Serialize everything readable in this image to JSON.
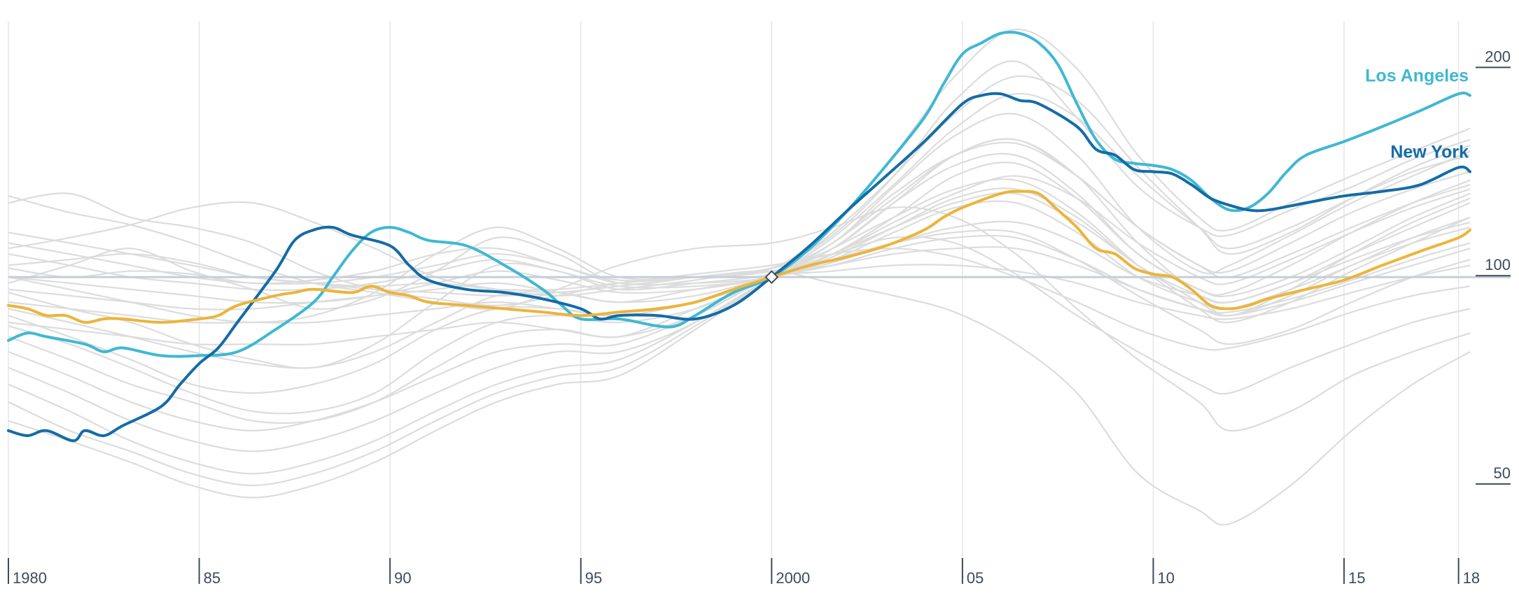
{
  "chart_data": {
    "type": "line",
    "title": "",
    "xlabel": "",
    "ylabel": "",
    "y_scale": "log",
    "xlim": [
      1980,
      2018.3
    ],
    "ylim": [
      40,
      240
    ],
    "grid": true,
    "reference_value": 100,
    "reference_point": {
      "x": 2000,
      "y": 100
    },
    "x_ticks": [
      {
        "value": 1980,
        "label": "1980"
      },
      {
        "value": 1985,
        "label": "85"
      },
      {
        "value": 1990,
        "label": "90"
      },
      {
        "value": 1995,
        "label": "95"
      },
      {
        "value": 2000,
        "label": "2000"
      },
      {
        "value": 2005,
        "label": "05"
      },
      {
        "value": 2010,
        "label": "10"
      },
      {
        "value": 2015,
        "label": "15"
      },
      {
        "value": 2018,
        "label": "18"
      }
    ],
    "y_ticks": [
      {
        "value": 200,
        "label": "200"
      },
      {
        "value": 100,
        "label": "100"
      },
      {
        "value": 50,
        "label": "50"
      }
    ],
    "colors": {
      "background_series": "#dcdcdc",
      "reference_line": "#c5cfd8",
      "gridline": "#e6e6e6",
      "axis_text": "#3d4a5c",
      "Los Angeles": "#3fb8d2",
      "New York": "#136ca6",
      "highlight_gold": "#ecb43a"
    },
    "highlighted_series": [
      {
        "name": "Los Angeles",
        "color": "#3fb8d2",
        "labeled": true,
        "x": [
          1980,
          1980.5,
          1981,
          1982,
          1982.5,
          1983,
          1984,
          1985,
          1986,
          1987,
          1988,
          1988.5,
          1989,
          1989.5,
          1990,
          1990.5,
          1991,
          1992,
          1993,
          1994,
          1994.5,
          1995,
          1996,
          1997,
          1997.5,
          1998,
          1999,
          2000,
          2001,
          2002,
          2003,
          2004,
          2004.5,
          2005,
          2005.5,
          2006,
          2006.5,
          2007,
          2007.5,
          2008,
          2008.5,
          2009,
          2009.5,
          2010,
          2010.5,
          2011,
          2011.5,
          2012,
          2012.5,
          2013,
          2013.5,
          2014,
          2015,
          2016,
          2017,
          2018,
          2018.3
        ],
        "y": [
          81,
          83,
          82,
          80,
          78,
          79,
          77,
          77,
          78,
          84,
          92,
          100,
          109,
          116,
          118,
          116,
          113,
          111,
          104,
          96,
          91,
          87,
          87,
          85,
          85,
          88,
          95,
          100,
          110,
          125,
          145,
          170,
          190,
          210,
          218,
          225,
          225,
          218,
          203,
          178,
          158,
          148,
          146,
          145,
          143,
          138,
          130,
          125,
          126,
          132,
          142,
          150,
          157,
          165,
          174,
          184,
          183
        ]
      },
      {
        "name": "New York",
        "color": "#136ca6",
        "labeled": true,
        "x": [
          1980,
          1980.5,
          1981,
          1981.7,
          1982,
          1982.5,
          1983,
          1984,
          1984.5,
          1985,
          1985.5,
          1986,
          1987,
          1987.5,
          1988,
          1988.5,
          1989,
          1990,
          1990.5,
          1991,
          1992,
          1993,
          1994,
          1995,
          1995.5,
          1996,
          1997,
          1998,
          1999,
          2000,
          2001,
          2002,
          2003,
          2004,
          2005,
          2005.5,
          2006,
          2006.5,
          2007,
          2008,
          2008.5,
          2009,
          2009.5,
          2010,
          2010.5,
          2011,
          2011.5,
          2012,
          2012.5,
          2013,
          2014,
          2015,
          2016,
          2017,
          2018,
          2018.3
        ],
        "y": [
          60,
          59,
          60,
          58,
          60,
          59,
          61,
          65,
          70,
          75,
          79,
          86,
          102,
          113,
          117,
          118,
          115,
          111,
          104,
          99,
          96,
          95,
          93,
          90,
          87,
          88,
          88,
          87,
          91,
          100,
          111,
          125,
          140,
          157,
          178,
          183,
          184,
          180,
          178,
          165,
          153,
          150,
          143,
          142,
          141,
          136,
          130,
          127,
          125,
          125,
          128,
          131,
          133,
          136,
          144,
          142
        ]
      },
      {
        "name": "",
        "color": "#ecb43a",
        "labeled": false,
        "x": [
          1980,
          1980.5,
          1981,
          1981.5,
          1982,
          1982.5,
          1983,
          1984,
          1985,
          1985.5,
          1986,
          1987,
          1987.5,
          1988,
          1989,
          1989.5,
          1990,
          1990.5,
          1991,
          1992,
          1993,
          1994,
          1995,
          1996,
          1997,
          1998,
          1999,
          2000,
          2001,
          2002,
          2003,
          2004,
          2004.5,
          2005,
          2006,
          2006.5,
          2007,
          2007.5,
          2008,
          2008.5,
          2009,
          2009.5,
          2010,
          2010.5,
          2011,
          2011.5,
          2012,
          2012.5,
          2013,
          2014,
          2015,
          2016,
          2017,
          2018,
          2018.3
        ],
        "y": [
          91,
          90,
          88,
          88,
          86,
          87,
          87,
          86,
          87,
          88,
          91,
          94,
          95,
          96,
          95,
          97,
          95,
          94,
          92,
          91,
          90,
          89,
          88,
          89,
          90,
          92,
          96,
          100,
          104,
          107,
          111,
          117,
          122,
          126,
          132,
          133,
          132,
          125,
          118,
          110,
          108,
          103,
          101,
          100,
          96,
          91,
          90,
          91,
          93,
          96,
          99,
          104,
          109,
          114,
          117
        ]
      }
    ],
    "background_series": [
      [
        131,
        124,
        119,
        112,
        104,
        98,
        95,
        92,
        90,
        96,
        104,
        110,
        112,
        118,
        126,
        122,
        108,
        90,
        76,
        66,
        60,
        64,
        72,
        78,
        83
      ],
      [
        128,
        132,
        122,
        118,
        112,
        102,
        96,
        93,
        91,
        94,
        98,
        101,
        104,
        108,
        114,
        112,
        101,
        88,
        78,
        70,
        68,
        74,
        80,
        86,
        90
      ],
      [
        110,
        114,
        119,
        126,
        128,
        120,
        110,
        100,
        96,
        94,
        96,
        99,
        103,
        108,
        110,
        107,
        100,
        92,
        84,
        79,
        79,
        83,
        89,
        94,
        97
      ],
      [
        116,
        112,
        108,
        104,
        100,
        98,
        96,
        95,
        94,
        95,
        97,
        100,
        102,
        98,
        94,
        89,
        80,
        68,
        52,
        46,
        44,
        50,
        60,
        70,
        78
      ],
      [
        104,
        106,
        108,
        105,
        100,
        98,
        97,
        98,
        96,
        96,
        98,
        100,
        103,
        112,
        135,
        160,
        172,
        150,
        118,
        102,
        104,
        115,
        128,
        140,
        152
      ],
      [
        103,
        100,
        102,
        101,
        98,
        99,
        102,
        108,
        110,
        104,
        99,
        100,
        103,
        115,
        140,
        180,
        205,
        170,
        135,
        118,
        115,
        125,
        135,
        148,
        158
      ],
      [
        98,
        104,
        110,
        102,
        96,
        90,
        93,
        102,
        114,
        108,
        98,
        100,
        103,
        118,
        150,
        195,
        228,
        200,
        150,
        122,
        117,
        128,
        140,
        152,
        164
      ],
      [
        100,
        96,
        92,
        88,
        86,
        88,
        95,
        108,
        118,
        110,
        100,
        100,
        102,
        110,
        128,
        150,
        158,
        140,
        118,
        104,
        100,
        108,
        118,
        128,
        136
      ],
      [
        95,
        90,
        86,
        80,
        76,
        74,
        80,
        92,
        104,
        102,
        96,
        98,
        101,
        108,
        120,
        132,
        140,
        130,
        112,
        100,
        98,
        106,
        116,
        126,
        134
      ],
      [
        90,
        86,
        82,
        78,
        75,
        74,
        78,
        86,
        94,
        95,
        92,
        96,
        100,
        105,
        112,
        118,
        120,
        112,
        100,
        94,
        92,
        98,
        106,
        114,
        120
      ],
      [
        88,
        82,
        76,
        70,
        68,
        70,
        75,
        84,
        90,
        90,
        88,
        92,
        100,
        112,
        132,
        150,
        156,
        140,
        118,
        104,
        102,
        112,
        124,
        134,
        142
      ],
      [
        85,
        80,
        74,
        68,
        64,
        64,
        68,
        78,
        86,
        88,
        86,
        90,
        100,
        110,
        128,
        145,
        150,
        132,
        108,
        96,
        95,
        104,
        116,
        128,
        138
      ],
      [
        82,
        76,
        70,
        66,
        62,
        62,
        66,
        74,
        82,
        84,
        82,
        90,
        100,
        108,
        118,
        128,
        132,
        120,
        104,
        92,
        88,
        94,
        104,
        112,
        118
      ],
      [
        78,
        72,
        66,
        62,
        60,
        62,
        66,
        72,
        78,
        80,
        80,
        88,
        100,
        106,
        112,
        116,
        116,
        106,
        94,
        84,
        80,
        84,
        92,
        100,
        106
      ],
      [
        74,
        68,
        62,
        58,
        56,
        58,
        62,
        68,
        74,
        78,
        78,
        86,
        100,
        110,
        122,
        134,
        138,
        124,
        104,
        90,
        86,
        92,
        102,
        112,
        122
      ],
      [
        70,
        64,
        58,
        54,
        52,
        54,
        58,
        64,
        70,
        74,
        76,
        86,
        100,
        112,
        130,
        150,
        158,
        140,
        112,
        94,
        88,
        96,
        108,
        120,
        130
      ],
      [
        66,
        60,
        56,
        52,
        50,
        52,
        56,
        62,
        68,
        72,
        74,
        85,
        100,
        114,
        136,
        164,
        184,
        170,
        140,
        118,
        110,
        118,
        130,
        142,
        150
      ],
      [
        62,
        58,
        54,
        50,
        48,
        50,
        54,
        60,
        66,
        70,
        72,
        84,
        100,
        116,
        140,
        172,
        195,
        180,
        144,
        118,
        108,
        116,
        130,
        144,
        155
      ],
      [
        86,
        84,
        82,
        80,
        80,
        80,
        82,
        84,
        86,
        84,
        82,
        88,
        100,
        104,
        108,
        110,
        110,
        104,
        96,
        90,
        88,
        92,
        98,
        104,
        110
      ],
      [
        92,
        90,
        88,
        86,
        86,
        86,
        88,
        90,
        92,
        90,
        88,
        92,
        100,
        102,
        104,
        104,
        102,
        98,
        92,
        88,
        87,
        90,
        95,
        100,
        104
      ],
      [
        96,
        94,
        92,
        90,
        90,
        92,
        94,
        96,
        98,
        95,
        92,
        94,
        100,
        104,
        110,
        114,
        114,
        106,
        96,
        90,
        89,
        93,
        99,
        106,
        112
      ],
      [
        100,
        98,
        96,
        94,
        92,
        92,
        94,
        98,
        102,
        99,
        95,
        96,
        100,
        106,
        116,
        126,
        128,
        116,
        100,
        92,
        90,
        96,
        104,
        114,
        122
      ],
      [
        108,
        104,
        100,
        98,
        96,
        96,
        98,
        102,
        106,
        102,
        97,
        97,
        100,
        108,
        122,
        140,
        146,
        130,
        108,
        96,
        94,
        100,
        110,
        122,
        132
      ],
      [
        112,
        108,
        104,
        100,
        98,
        98,
        100,
        104,
        108,
        104,
        98,
        98,
        100,
        107,
        118,
        130,
        134,
        122,
        104,
        94,
        92,
        98,
        108,
        118,
        128
      ]
    ],
    "background_x": [
      1980,
      1981.6,
      1983.2,
      1984.8,
      1986.4,
      1988,
      1989.6,
      1991.2,
      1992.8,
      1994.4,
      1996,
      1998,
      2000,
      2001.6,
      2003.2,
      2004.8,
      2006.4,
      2008,
      2009.6,
      2011.2,
      2012,
      2013.6,
      2015.2,
      2016.8,
      2018.3
    ]
  }
}
